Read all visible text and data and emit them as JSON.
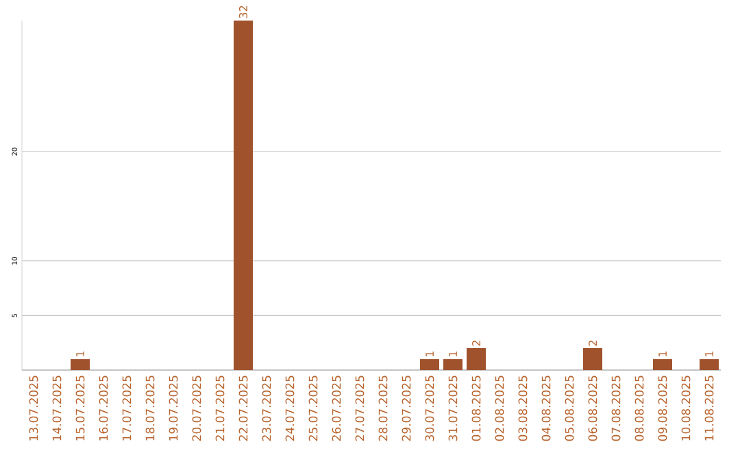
{
  "chart_data": {
    "type": "bar",
    "categories": [
      "13.07.2025",
      "14.07.2025",
      "15.07.2025",
      "16.07.2025",
      "17.07.2025",
      "18.07.2025",
      "19.07.2025",
      "20.07.2025",
      "21.07.2025",
      "22.07.2025",
      "23.07.2025",
      "24.07.2025",
      "25.07.2025",
      "26.07.2025",
      "27.07.2025",
      "28.07.2025",
      "29.07.2025",
      "30.07.2025",
      "31.07.2025",
      "01.08.2025",
      "02.08.2025",
      "03.08.2025",
      "04.08.2025",
      "05.08.2025",
      "06.08.2025",
      "07.08.2025",
      "08.08.2025",
      "09.08.2025",
      "10.08.2025",
      "11.08.2025"
    ],
    "values": [
      0,
      0,
      1,
      0,
      0,
      0,
      0,
      0,
      0,
      32,
      0,
      0,
      0,
      0,
      0,
      0,
      0,
      1,
      1,
      2,
      0,
      0,
      0,
      0,
      2,
      0,
      0,
      1,
      0,
      1
    ],
    "value_labels": [
      null,
      null,
      "1",
      null,
      null,
      null,
      null,
      null,
      null,
      "32",
      null,
      null,
      null,
      null,
      null,
      null,
      null,
      "1",
      "1",
      "2",
      null,
      null,
      null,
      null,
      "2",
      null,
      null,
      "1",
      null,
      "1"
    ],
    "color": "#a0522d",
    "ylim": [
      0,
      32
    ],
    "yticks": [
      5,
      10,
      20
    ],
    "grid": "y"
  }
}
